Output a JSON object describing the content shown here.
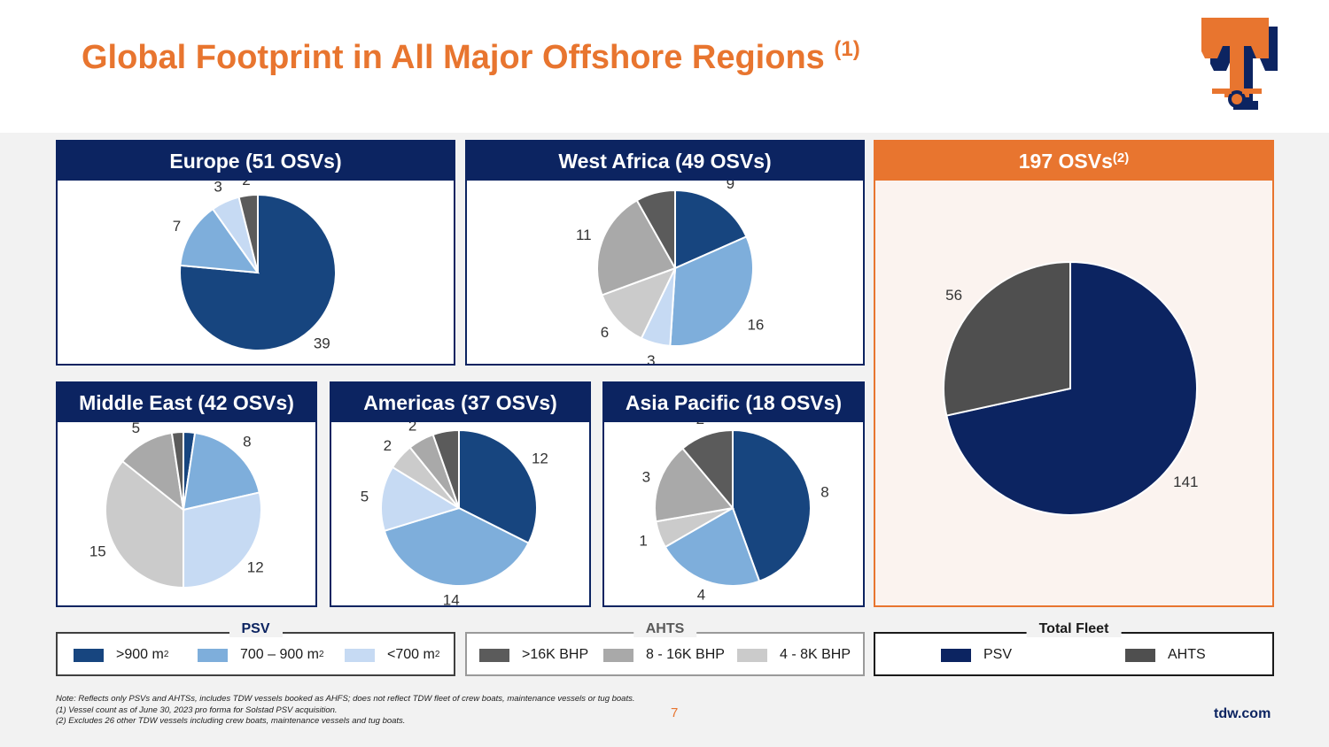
{
  "title": "Global Footprint in All Major Offshore Regions",
  "title_note": "(1)",
  "colors": {
    "psv_gt900": "#17457f",
    "psv_700_900": "#7eaedb",
    "psv_lt700": "#c6daf3",
    "ahts_gt16k": "#5b5b5b",
    "ahts_8_16k": "#a9a9a9",
    "ahts_4_8k": "#cbcbcb",
    "total_psv": "#0c2461",
    "total_ahts": "#4f4f4f",
    "accent": "#e8752f",
    "navy": "#0c2461"
  },
  "chart_data": [
    {
      "type": "pie",
      "title": "Europe (51 OSVs)",
      "labels": [
        ">900 m2",
        "700 – 900 m2",
        "<700 m2",
        ">16K BHP"
      ],
      "values": [
        39,
        7,
        3,
        2
      ]
    },
    {
      "type": "pie",
      "title": "West Africa (49 OSVs)",
      "labels": [
        ">900 m2",
        "700 – 900 m2",
        "<700 m2",
        "4 - 8K BHP",
        "8 - 16K BHP",
        ">16K BHP"
      ],
      "values": [
        9,
        16,
        3,
        6,
        11,
        4
      ]
    },
    {
      "type": "pie",
      "title": "197 OSVs",
      "title_note": "(2)",
      "labels": [
        "PSV",
        "AHTS"
      ],
      "values": [
        141,
        56
      ]
    },
    {
      "type": "pie",
      "title": "Middle East (42 OSVs)",
      "labels": [
        ">900 m2",
        "700 – 900 m2",
        "<700 m2",
        "4 - 8K BHP",
        "8 - 16K BHP",
        ">16K BHP"
      ],
      "values": [
        1,
        8,
        12,
        15,
        5,
        1
      ]
    },
    {
      "type": "pie",
      "title": "Americas (37 OSVs)",
      "labels": [
        ">900 m2",
        "700 – 900 m2",
        "<700 m2",
        "4 - 8K BHP",
        "8 - 16K BHP",
        ">16K BHP"
      ],
      "values": [
        12,
        14,
        5,
        2,
        2,
        2
      ]
    },
    {
      "type": "pie",
      "title": "Asia Pacific (18 OSVs)",
      "labels": [
        ">900 m2",
        "700 – 900 m2",
        "4 - 8K BHP",
        "8 - 16K BHP",
        ">16K BHP"
      ],
      "values": [
        8,
        4,
        1,
        3,
        2
      ]
    }
  ],
  "legends": {
    "psv": {
      "title": "PSV",
      "items": [
        {
          "label": ">900 m",
          "sup": "2"
        },
        {
          "label": "700 – 900 m",
          "sup": "2"
        },
        {
          "label": "<700 m",
          "sup": "2"
        }
      ]
    },
    "ahts": {
      "title": "AHTS",
      "items": [
        {
          "label": ">16K BHP"
        },
        {
          "label": "8 - 16K BHP"
        },
        {
          "label": "4 - 8K BHP"
        }
      ]
    },
    "total": {
      "title": "Total Fleet",
      "items": [
        {
          "label": "PSV"
        },
        {
          "label": "AHTS"
        }
      ]
    }
  },
  "footnotes": {
    "note": "Note: Reflects only PSVs and AHTSs, includes TDW vessels booked as AHFS; does not reflect TDW fleet of crew boats, maintenance vessels or tug boats.",
    "fn1": "(1) Vessel count as of June 30, 2023 pro forma for Solstad PSV acquisition.",
    "fn2": "(2) Excludes 26 other TDW vessels including crew boats, maintenance vessels and tug boats."
  },
  "page_number": "7",
  "website": "tdw.com"
}
